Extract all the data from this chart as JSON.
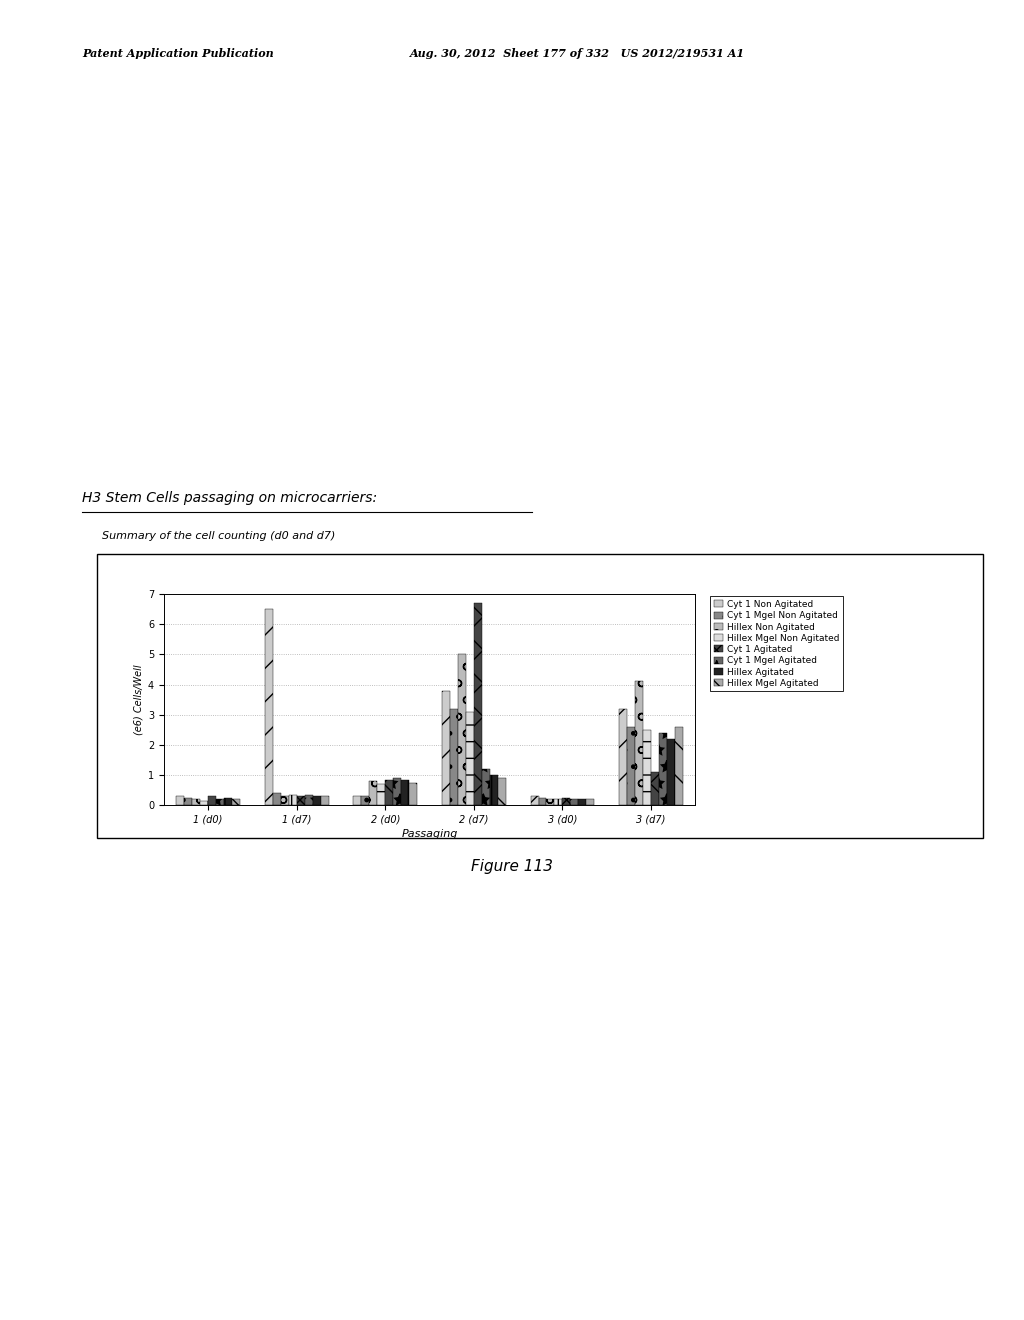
{
  "title": "H3 Stem Cells passaging on microcarriers:",
  "subtitle": "Summary of the cell counting (d0 and d7)",
  "xlabel": "Passaging",
  "ylabel": "(e6) Cells/Well",
  "ylim": [
    0,
    7
  ],
  "yticks": [
    0,
    1,
    2,
    3,
    4,
    5,
    6,
    7
  ],
  "groups": [
    "1 (d0)",
    "1 (d7)",
    "2 (d0)",
    "2 (d7)",
    "3 (d0)",
    "3 (d7)"
  ],
  "series": [
    {
      "label": "Cyt 1 Non Agitated",
      "values": [
        0.3,
        6.5,
        0.3,
        3.8,
        0.3,
        3.2
      ]
    },
    {
      "label": "Cyt 1 Mgel Non Agitated",
      "values": [
        0.25,
        0.4,
        0.3,
        3.2,
        0.25,
        2.6
      ]
    },
    {
      "label": "Hillex Non Agitated",
      "values": [
        0.2,
        0.3,
        0.8,
        5.0,
        0.2,
        4.1
      ]
    },
    {
      "label": "Hillex Mgel Non Agitated",
      "values": [
        0.15,
        0.35,
        0.7,
        3.1,
        0.2,
        2.5
      ]
    },
    {
      "label": "Cyt 1 Agitated",
      "values": [
        0.3,
        0.3,
        0.85,
        6.7,
        0.25,
        1.1
      ]
    },
    {
      "label": "Cyt 1 Mgel Agitated",
      "values": [
        0.2,
        0.35,
        0.9,
        1.2,
        0.2,
        2.4
      ]
    },
    {
      "label": "Hillex Agitated",
      "values": [
        0.25,
        0.3,
        0.85,
        1.0,
        0.2,
        2.2
      ]
    },
    {
      "label": "Hillex Mgel Agitated",
      "values": [
        0.2,
        0.3,
        0.75,
        0.9,
        0.2,
        2.6
      ]
    }
  ],
  "hatch_patterns": [
    "/",
    ".",
    "o",
    "+",
    "x",
    "*",
    "|",
    "\\"
  ],
  "gray_colors": [
    "#cccccc",
    "#888888",
    "#bbbbbb",
    "#dddddd",
    "#444444",
    "#666666",
    "#222222",
    "#aaaaaa"
  ],
  "background_color": "#ffffff",
  "figure_label": "Figure 113",
  "bar_width": 0.09,
  "n_groups": 6,
  "n_series": 8,
  "header_left": "Patent Application Publication",
  "header_right": "Aug. 30, 2012  Sheet 177 of 332   US 2012/219531 A1",
  "title_fontsize": 10,
  "subtitle_fontsize": 8,
  "axis_fontsize": 7,
  "legend_fontsize": 6.5,
  "tick_fontsize": 7
}
